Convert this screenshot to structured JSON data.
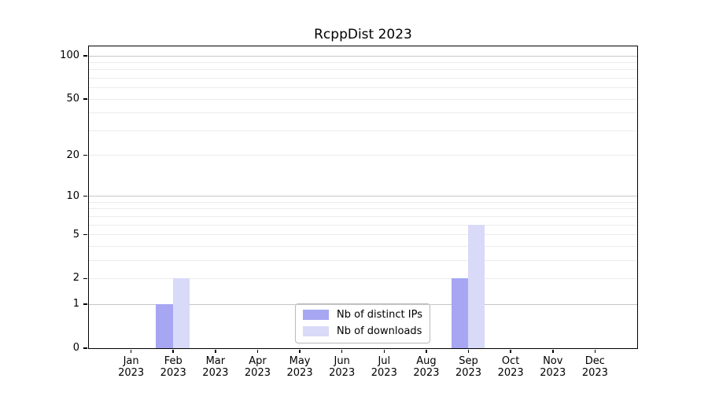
{
  "chart_data": {
    "type": "bar",
    "title": "RcppDist 2023",
    "categories": [
      "Jan",
      "Feb",
      "Mar",
      "Apr",
      "May",
      "Jun",
      "Jul",
      "Aug",
      "Sep",
      "Oct",
      "Nov",
      "Dec"
    ],
    "category_sublabel": "2023",
    "series": [
      {
        "name": "Nb of distinct IPs",
        "color": "#a6a6f3",
        "values": [
          0,
          1,
          0,
          0,
          0,
          0,
          0,
          0,
          2,
          0,
          0,
          0
        ]
      },
      {
        "name": "Nb of downloads",
        "color": "#d9d9f8",
        "values": [
          0,
          2,
          0,
          0,
          0,
          0,
          0,
          0,
          6,
          0,
          0,
          0
        ]
      }
    ],
    "y_axis": {
      "scale": "log1p",
      "labeled_ticks": [
        0,
        1,
        2,
        5,
        10,
        20,
        50,
        100
      ],
      "gridlines_major": [
        1,
        10,
        100
      ],
      "gridlines_minor": [
        2,
        3,
        4,
        5,
        6,
        7,
        8,
        9,
        20,
        30,
        40,
        50,
        60,
        70,
        80,
        90
      ],
      "max_tick": 100,
      "ylim": [
        0,
        100
      ]
    },
    "legend_position": "lower center",
    "grid": true
  },
  "colors": {
    "grid_major": "#c6c6c6",
    "grid_minor": "#ececec",
    "spine": "#000000",
    "background": "#ffffff",
    "text": "#000000",
    "legend_border": "#b8b8b8"
  }
}
